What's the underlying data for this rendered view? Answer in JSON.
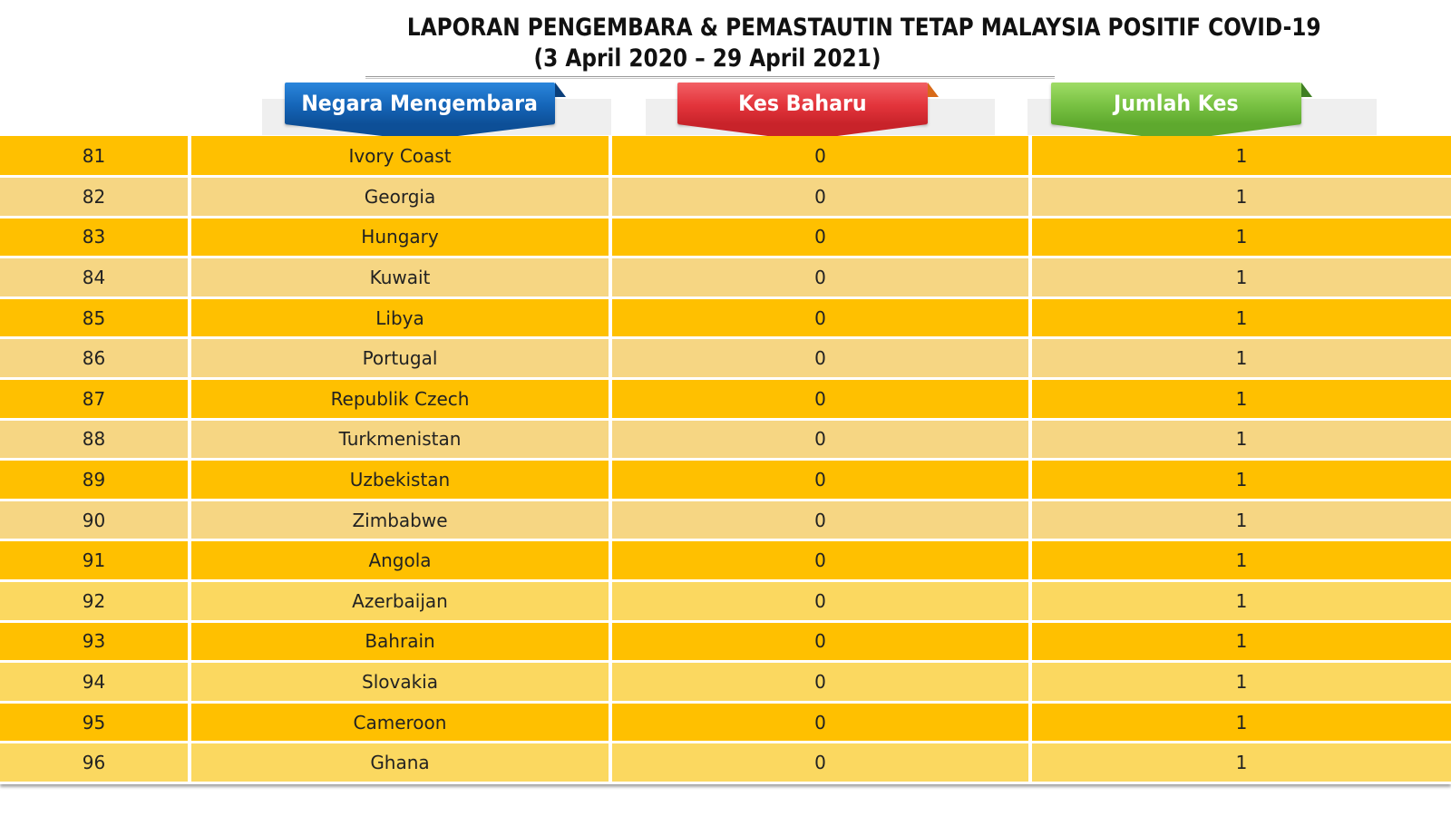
{
  "title": {
    "line1": "LAPORAN PENGEMBARA & PEMASTAUTIN TETAP MALAYSIA POSITIF COVID-19",
    "line2": "(3 April 2020 – 29 April  2021)"
  },
  "headers": {
    "country": "Negara Mengembara",
    "new_cases": "Kes Baharu",
    "total_cases": "Jumlah Kes"
  },
  "colors": {
    "header_country": "#1f6fc2",
    "header_new": "#e8383f",
    "header_total": "#79c143",
    "row_dark": "#ffc000",
    "row_light": "#f6d683"
  },
  "rows": [
    {
      "no": "81",
      "country": "Ivory Coast",
      "new": "0",
      "total": "1"
    },
    {
      "no": "82",
      "country": "Georgia",
      "new": "0",
      "total": "1"
    },
    {
      "no": "83",
      "country": "Hungary",
      "new": "0",
      "total": "1"
    },
    {
      "no": "84",
      "country": "Kuwait",
      "new": "0",
      "total": "1"
    },
    {
      "no": "85",
      "country": "Libya",
      "new": "0",
      "total": "1"
    },
    {
      "no": "86",
      "country": "Portugal",
      "new": "0",
      "total": "1"
    },
    {
      "no": "87",
      "country": "Republik Czech",
      "new": "0",
      "total": "1"
    },
    {
      "no": "88",
      "country": "Turkmenistan",
      "new": "0",
      "total": "1"
    },
    {
      "no": "89",
      "country": "Uzbekistan",
      "new": "0",
      "total": "1"
    },
    {
      "no": "90",
      "country": "Zimbabwe",
      "new": "0",
      "total": "1"
    },
    {
      "no": "91",
      "country": "Angola",
      "new": "0",
      "total": "1"
    },
    {
      "no": "92",
      "country": "Azerbaijan",
      "new": "0",
      "total": "1"
    },
    {
      "no": "93",
      "country": "Bahrain",
      "new": "0",
      "total": "1"
    },
    {
      "no": "94",
      "country": "Slovakia",
      "new": "0",
      "total": "1"
    },
    {
      "no": "95",
      "country": "Cameroon",
      "new": "0",
      "total": "1"
    },
    {
      "no": "96",
      "country": "Ghana",
      "new": "0",
      "total": "1"
    }
  ]
}
